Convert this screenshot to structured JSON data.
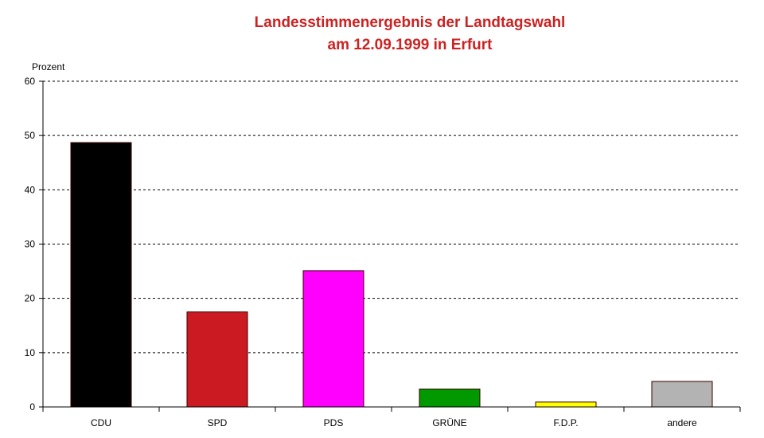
{
  "chart_data": {
    "type": "bar",
    "title_line1": "Landesstimmenergebnis der Landtagswahl",
    "title_line2": "am 12.09.1999  in Erfurt",
    "ylabel": "Prozent",
    "xlabel": "",
    "ylim": [
      0,
      60
    ],
    "yticks": [
      0,
      10,
      20,
      30,
      40,
      50,
      60
    ],
    "grid": true,
    "categories": [
      "CDU",
      "SPD",
      "PDS",
      "GRÜNE",
      "F.D.P.",
      "andere"
    ],
    "values": [
      48.7,
      17.5,
      25.1,
      3.3,
      0.9,
      4.7
    ],
    "colors": [
      "#000000",
      "#cc1a22",
      "#ff00ff",
      "#009900",
      "#ffff00",
      "#b3b3b3"
    ]
  }
}
